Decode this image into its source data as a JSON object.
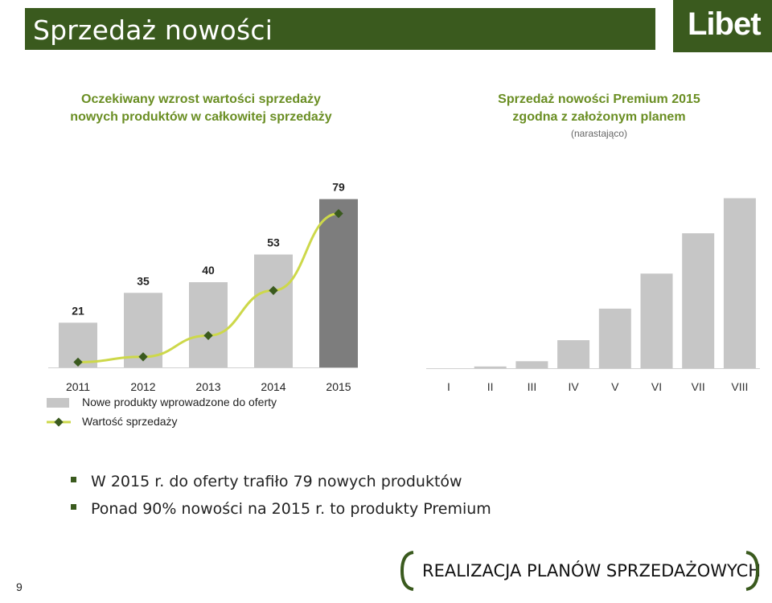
{
  "slide": {
    "title": "Sprzedaż nowości",
    "logo_text": "Libet",
    "page_number": "9",
    "footer_text": "REALIZACJA PLANÓW SPRZEDAŻOWYCH"
  },
  "left_heading": [
    "Oczekiwany wzrost wartości sprzedaży",
    "nowych produktów w całkowitej sprzedaży"
  ],
  "right_heading": [
    "Sprzedaż nowości Premium 2015",
    "zgodna z założonym planem"
  ],
  "right_note": "(narastająco)",
  "bullets": [
    "W 2015 r. do oferty trafiło 79 nowych produktów",
    "Ponad 90% nowości na 2015 r. to produkty Premium"
  ],
  "legend": {
    "bars": "Nowe produkty wprowadzone do oferty",
    "line": "Wartość sprzedaży"
  },
  "colors": {
    "brand_green": "#3a5a1e",
    "heading_green": "#6a8e23",
    "bar_gray": "#c6c6c6",
    "bar_dark": "#7d7d7d",
    "line_yellow": "#cdd84a",
    "marker_green": "#3a5a1e"
  },
  "chart_data": [
    {
      "type": "bar",
      "categories": [
        "2011",
        "2012",
        "2013",
        "2014",
        "2015"
      ],
      "series": [
        {
          "name": "Nowe produkty wprowadzone do oferty",
          "type": "bar",
          "values": [
            21,
            35,
            40,
            53,
            79
          ]
        },
        {
          "name": "Wartość sprzedaży",
          "type": "line",
          "values": [
            2,
            4,
            12,
            29,
            58
          ]
        }
      ],
      "data_labels": [
        "21",
        "35",
        "40",
        "53",
        "79"
      ],
      "legend_position": "bottom-left",
      "grid": false
    },
    {
      "type": "bar",
      "categories": [
        "I",
        "II",
        "III",
        "IV",
        "V",
        "VI",
        "VII",
        "VIII"
      ],
      "values": [
        0,
        1,
        4,
        16,
        34,
        54,
        77,
        97
      ],
      "grid": false
    }
  ]
}
